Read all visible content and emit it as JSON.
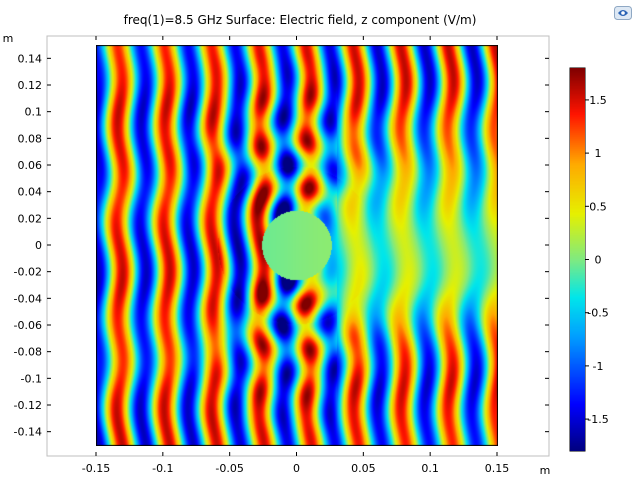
{
  "chart_data": {
    "type": "heatmap",
    "title": "freq(1)=8.5 GHz   Surface: Electric field, z component (V/m)",
    "xlabel": "m",
    "ylabel": "m",
    "xlim": [
      -0.15,
      0.15
    ],
    "ylim": [
      -0.15,
      0.15
    ],
    "view_xlim": [
      -0.185,
      0.185
    ],
    "view_ylim": [
      -0.155,
      0.155
    ],
    "x_ticks": [
      -0.15,
      -0.1,
      -0.05,
      0,
      0.05,
      0.1,
      0.15
    ],
    "x_tick_labels": [
      "-0.15",
      "-0.1",
      "-0.05",
      "0",
      "0.05",
      "0.1",
      "0.15"
    ],
    "y_ticks": [
      0.14,
      0.12,
      0.1,
      0.08,
      0.06,
      0.04,
      0.02,
      0,
      -0.02,
      -0.04,
      -0.06,
      -0.08,
      -0.1,
      -0.12,
      -0.14
    ],
    "y_tick_labels": [
      "0.14",
      "0.12",
      "0.1",
      "0.08",
      "0.06",
      "0.04",
      "0.02",
      "0",
      "-0.02",
      "-0.04",
      "-0.06",
      "-0.08",
      "-0.1",
      "-0.12",
      "-0.14"
    ],
    "circles": [
      {
        "name": "outer-boundary",
        "cx": 0,
        "cy": 0,
        "r": 0.059
      },
      {
        "name": "inner-boundary",
        "cx": 0,
        "cy": 0,
        "r": 0.026
      }
    ],
    "colorbar": {
      "min": -1.8,
      "max": 1.8,
      "ticks": [
        1.5,
        1,
        0.5,
        0,
        -0.5,
        -1,
        -1.5
      ],
      "tick_labels": [
        "1.5",
        "1",
        "0.5",
        "0",
        "-0.5",
        "-1",
        "-1.5"
      ],
      "colormap": "rainbow"
    },
    "grid": false,
    "legend": "right"
  },
  "icons": {
    "toolbar": "comsol-logo-icon"
  }
}
